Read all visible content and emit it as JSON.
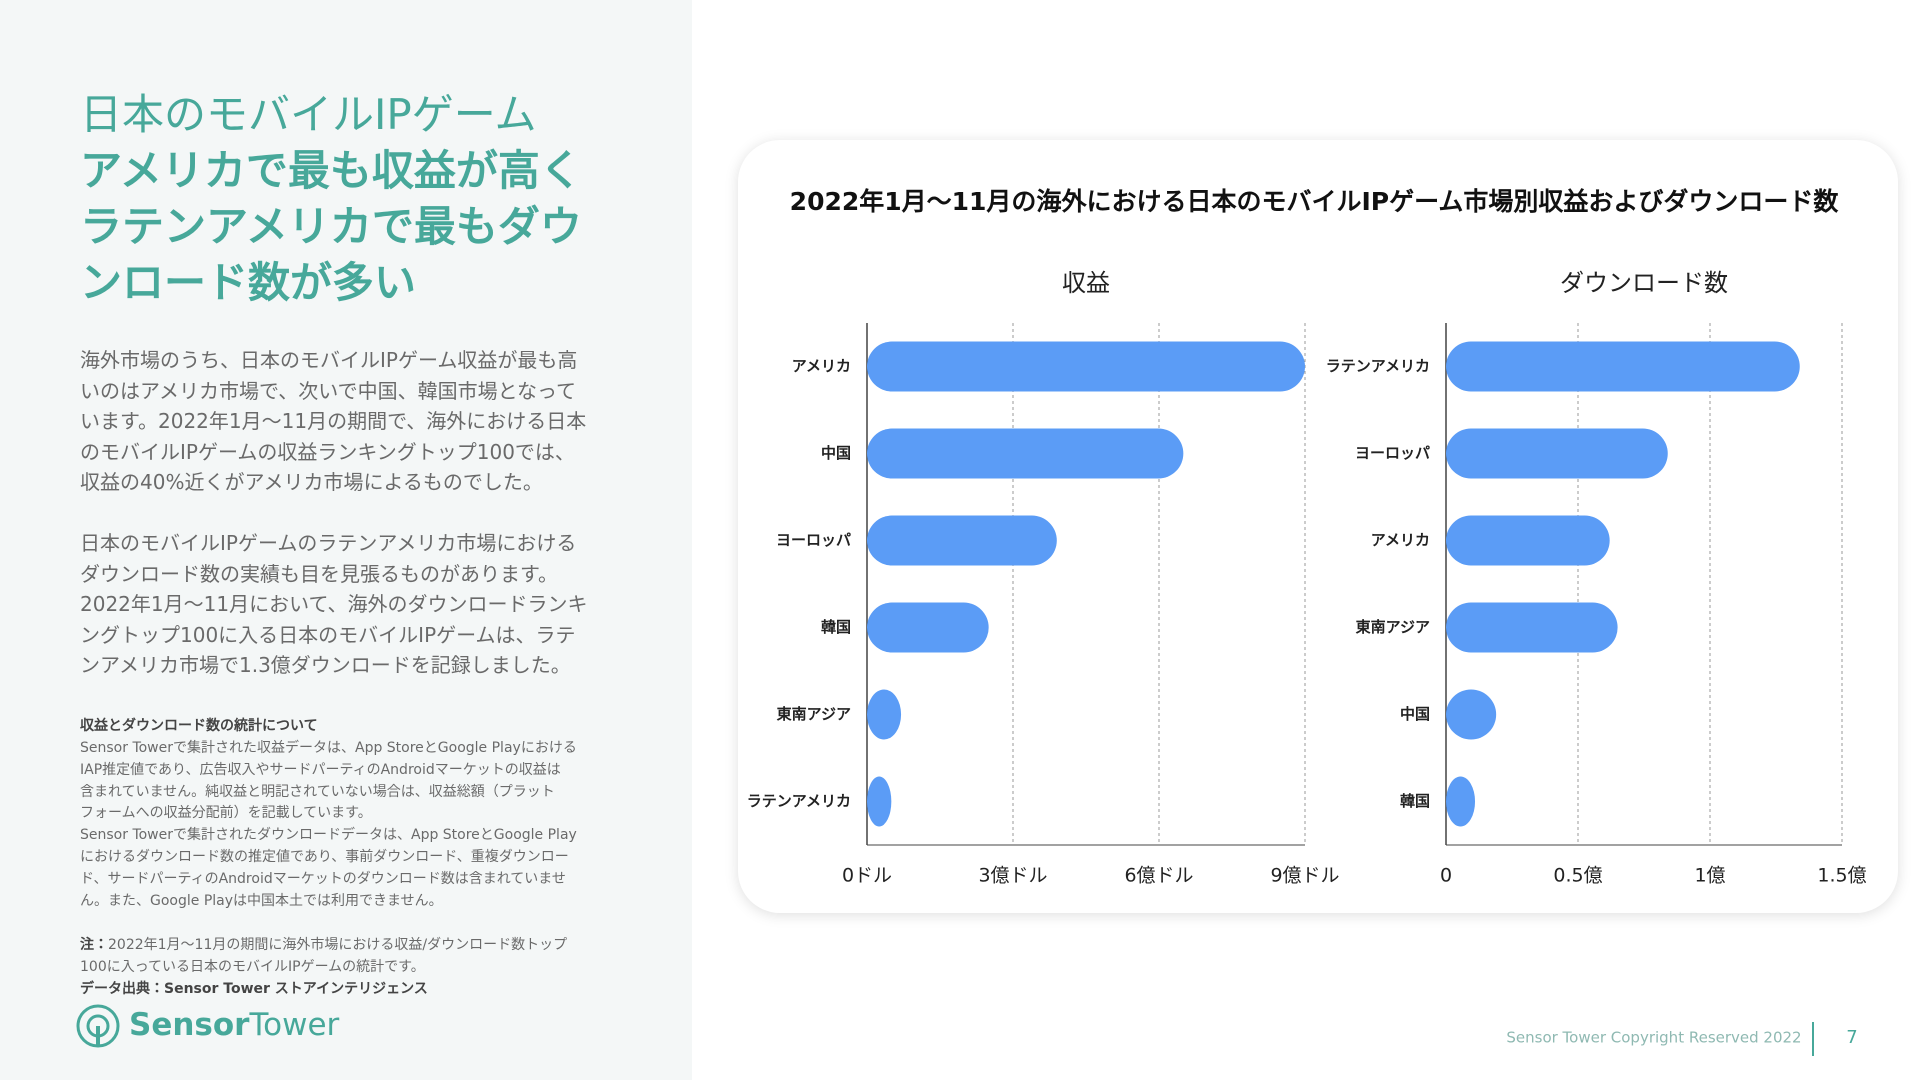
{
  "header": {
    "title_line": "日本のモバイルIPゲーム",
    "headline": [
      "アメリカで最も収益が高く",
      "ラテンアメリカで最もダウ",
      "ンロード数が多い"
    ]
  },
  "body": {
    "paragraphs": [
      [
        "海外市場のうち、日本のモバイルIPゲーム収益が最も高",
        "いのはアメリカ市場で、次いで中国、韓国市場となって",
        "います。2022年1月～11月の期間で、海外における日本",
        "のモバイルIPゲームの収益ランキングトップ100では、",
        "収益の40%近くがアメリカ市場によるものでした。"
      ],
      [
        "日本のモバイルIPゲームのラテンアメリカ市場における",
        "ダウンロード数の実績も目を見張るものがあります。",
        "2022年1月～11月において、海外のダウンロードランキ",
        "ングトップ100に入る日本のモバイルIPゲームは、ラテ",
        "ンアメリカ市場で1.3億ダウンロードを記録しました。"
      ]
    ]
  },
  "stats_note": {
    "title": "収益とダウンロード数の統計について",
    "lines": [
      "Sensor Towerで集計された収益データは、App StoreとGoogle Playにおける",
      "IAP推定値であり、広告収入やサードパーティのAndroidマーケットの収益は",
      "含まれていません。純収益と明記されていない場合は、収益総額（プラット",
      "フォームへの収益分配前）を記載しています。",
      "Sensor Towerで集計されたダウンロードデータは、App StoreとGoogle Play",
      "におけるダウンロード数の推定値であり、事前ダウンロード、重複ダウンロー",
      "ド、サードパーティのAndroidマーケットのダウンロード数は含まれていませ",
      "ん。また、Google Playは中国本土では利用できません。"
    ]
  },
  "note": {
    "label": "注：",
    "lines": [
      "2022年1月～11月の期間に海外市場における収益/ダウンロード数トップ",
      "100に入っている日本のモバイルIPゲームの統計です。"
    ]
  },
  "source": "データ出典：Sensor Tower ストアインテリジェンス",
  "logo": {
    "part1": "Sensor",
    "part2": "Tower"
  },
  "figure_title": "2022年1月～11月の海外における日本のモバイルIPゲーム市場別収益およびダウンロード数",
  "chart_data": [
    {
      "type": "bar",
      "orientation": "horizontal",
      "title": "収益",
      "categories": [
        "アメリカ",
        "中国",
        "ヨーロッパ",
        "韓国",
        "東南アジア",
        "ラテンアメリカ"
      ],
      "values": [
        9.0,
        6.5,
        3.9,
        2.5,
        0.7,
        0.5
      ],
      "color": "#5b9cf6",
      "xlim": [
        0,
        9
      ],
      "xticks": [
        {
          "value": 0,
          "label": "0ドル"
        },
        {
          "value": 3,
          "label": "3億ドル"
        },
        {
          "value": 6,
          "label": "6億ドル"
        },
        {
          "value": 9,
          "label": "9億ドル"
        }
      ],
      "grid": true
    },
    {
      "type": "bar",
      "orientation": "horizontal",
      "title": "ダウンロード数",
      "categories": [
        "ラテンアメリカ",
        "ヨーロッパ",
        "アメリカ",
        "東南アジア",
        "中国",
        "韓国"
      ],
      "values": [
        1.34,
        0.84,
        0.62,
        0.65,
        0.19,
        0.11
      ],
      "color": "#5b9cf6",
      "xlim": [
        0,
        1.5
      ],
      "xticks": [
        0,
        {
          "value": 0.5,
          "label": "0.5億"
        },
        {
          "value": 1,
          "label": "1億"
        },
        {
          "value": 1.5,
          "label": "1.5億"
        }
      ],
      "grid": true
    }
  ],
  "footer": {
    "copyright": "Sensor Tower Copyright Reserved 2022",
    "page": 7
  }
}
